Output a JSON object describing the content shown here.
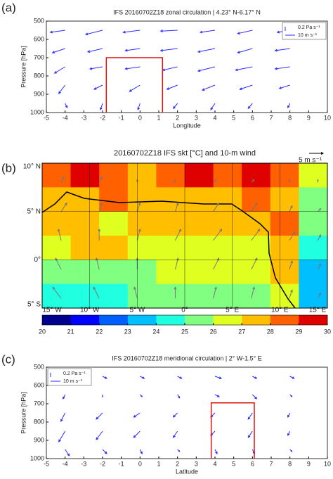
{
  "panels": [
    {
      "chart_data": {
        "type": "quiver",
        "panel_label": "(a)",
        "title": "IFS 20160702Z18 zonal circulation | 4.23° N-6.17° N",
        "xlabel": "Longitude",
        "ylabel": "Pressure [hPa]",
        "xlim": [
          -5,
          10
        ],
        "xticks": [
          -5,
          -4,
          -3,
          -2,
          -1,
          0,
          1,
          2,
          3,
          4,
          5,
          6,
          7,
          8,
          9,
          10
        ],
        "ylim": [
          1000,
          500
        ],
        "yticks": [
          500,
          600,
          700,
          800,
          900,
          1000
        ],
        "legend": [
          "0.2 Pa s⁻¹",
          "10 m s⁻¹"
        ],
        "legend_corner": "upper right",
        "color": "#2b2bff",
        "box": {
          "x": [
            -1.8,
            1.2
          ],
          "y": [
            1000,
            700
          ],
          "color": "#e01010"
        },
        "x": [
          -4,
          -2,
          0,
          2,
          4,
          6,
          8
        ],
        "levels": [
          550,
          650,
          750,
          850,
          950
        ],
        "u": [
          [
            -7,
            -8,
            -8,
            -8,
            -7,
            -7,
            -6
          ],
          [
            -6,
            -7,
            -7,
            -8,
            -8,
            -7,
            -7
          ],
          [
            -5,
            -6,
            -7,
            -7,
            -8,
            -8,
            -7
          ],
          [
            -3,
            -4,
            -5,
            -5,
            -6,
            -6,
            -5
          ],
          [
            1,
            -1,
            -1,
            -2,
            -2,
            -2,
            -1
          ]
        ],
        "w": [
          [
            0.05,
            0.1,
            0.05,
            0.02,
            0.05,
            0.08,
            0.05
          ],
          [
            0.1,
            0.08,
            0.05,
            0.05,
            0.08,
            0.1,
            0.05
          ],
          [
            0.15,
            0.05,
            0.05,
            0.08,
            0.1,
            0.08,
            0.05
          ],
          [
            0.2,
            0.1,
            0.15,
            0.1,
            0.12,
            0.1,
            0.08
          ],
          [
            0.1,
            0.15,
            0.15,
            0.12,
            0.15,
            0.12,
            0.1
          ]
        ]
      }
    },
    {
      "chart_data": {
        "type": "map",
        "panel_label": "(b)",
        "title": "20160702Z18 IFS skt [°C] and 10-m wind",
        "scale_label": "5 m s⁻¹",
        "xlim": [
          -15,
          15
        ],
        "xticks": [
          {
            "value": -15,
            "label": "15° W"
          },
          {
            "value": -10,
            "label": "10° W"
          },
          {
            "value": -5,
            "label": "5° W"
          },
          {
            "value": 0,
            "label": "0°"
          },
          {
            "value": 5,
            "label": "5° E"
          },
          {
            "value": 10,
            "label": "10° E"
          },
          {
            "value": 15,
            "label": "15° E"
          }
        ],
        "ylim": [
          -5,
          10
        ],
        "yticks": [
          {
            "value": 10,
            "label": "10° N"
          },
          {
            "value": 5,
            "label": "5° N"
          },
          {
            "value": 0,
            "label": "0°"
          },
          {
            "value": -5,
            "label": "5° S"
          }
        ],
        "colorbar": {
          "ticks": [
            20,
            21,
            22,
            23,
            24,
            25,
            26,
            27,
            28,
            29,
            30
          ],
          "colors": [
            "#00008f",
            "#0000ff",
            "#0060ff",
            "#00bfff",
            "#20ffdf",
            "#80ff80",
            "#dfff20",
            "#ffbf00",
            "#ff6000",
            "#df0000"
          ]
        },
        "lats": [
          8.75,
          6.25,
          3.75,
          1.25,
          -1.25,
          -3.75
        ],
        "lons": [
          -13.5,
          -10.5,
          -7.5,
          -4.5,
          -1.5,
          1.5,
          4.5,
          7.5,
          10.5,
          13.5
        ],
        "skt": [
          [
            28,
            29,
            28,
            27,
            28,
            29,
            28,
            29,
            28,
            26
          ],
          [
            27,
            27,
            28,
            27,
            27,
            27,
            27,
            28,
            27,
            25
          ],
          [
            27,
            27,
            26,
            27,
            27,
            27,
            27,
            27,
            28,
            25
          ],
          [
            26,
            27,
            27,
            26,
            26,
            26,
            26,
            26,
            27,
            24
          ],
          [
            25,
            25,
            25,
            25,
            26,
            26,
            26,
            26,
            27,
            23
          ],
          [
            24,
            24,
            24,
            25,
            25,
            25,
            25,
            25,
            26,
            23
          ]
        ],
        "wind_lats": [
          8,
          5,
          2,
          -1,
          -4
        ],
        "wind_lons": [
          -13,
          -9,
          -5,
          -1,
          3,
          7,
          11,
          14
        ],
        "wind_color": "#777777",
        "wind_u": [
          [
            1,
            1,
            0,
            0,
            1,
            1,
            0,
            0
          ],
          [
            2,
            1,
            1,
            1,
            2,
            2,
            1,
            1
          ],
          [
            -1,
            0,
            1,
            2,
            3,
            3,
            2,
            1
          ],
          [
            -2,
            -1,
            0,
            1,
            2,
            2,
            1,
            1
          ],
          [
            -3,
            -2,
            -1,
            0,
            1,
            1,
            1,
            1
          ]
        ],
        "wind_v": [
          [
            2,
            2,
            1,
            1,
            1,
            1,
            1,
            1
          ],
          [
            3,
            3,
            3,
            3,
            3,
            3,
            2,
            1
          ],
          [
            4,
            4,
            4,
            4,
            4,
            4,
            3,
            2
          ],
          [
            4,
            4,
            4,
            4,
            4,
            4,
            3,
            2
          ],
          [
            4,
            4,
            4,
            4,
            4,
            4,
            3,
            2
          ]
        ]
      }
    },
    {
      "chart_data": {
        "type": "quiver",
        "panel_label": "(c)",
        "title": "IFS 20160702Z18 meridional circulation | 2° W-1.5° E",
        "xlabel": "Latitude",
        "ylabel": "Pressure [hPa]",
        "xlim": [
          -5,
          10
        ],
        "xticks": [
          -5,
          -4,
          -3,
          -2,
          -1,
          0,
          1,
          2,
          3,
          4,
          5,
          6,
          7,
          8,
          9,
          10
        ],
        "ylim": [
          1000,
          500
        ],
        "yticks": [
          500,
          600,
          700,
          800,
          900,
          1000
        ],
        "legend": [
          "0.2 Pa s⁻¹",
          "10 m s⁻¹"
        ],
        "legend_corner": "upper left",
        "color": "#2b2bff",
        "box": {
          "x": [
            3.8,
            6.1
          ],
          "y": [
            1000,
            695
          ],
          "color": "#e01010"
        },
        "x": [
          -4,
          -2,
          0,
          2,
          4,
          6,
          8
        ],
        "levels": [
          550,
          650,
          750,
          850,
          950
        ],
        "u": [
          [
            1,
            2,
            2,
            2,
            3,
            2,
            2
          ],
          [
            -1,
            0,
            1,
            1,
            2,
            2,
            1
          ],
          [
            -2,
            -3,
            -3,
            -2,
            -2,
            -2,
            -1
          ],
          [
            -3,
            -3,
            -3,
            -2,
            -2,
            -2,
            -1
          ],
          [
            2,
            2,
            1,
            1,
            1,
            1,
            1
          ]
        ],
        "w": [
          [
            0.05,
            0.05,
            0.05,
            0.05,
            0.05,
            0.05,
            0.05
          ],
          [
            0.1,
            0.05,
            0.05,
            0.08,
            0.05,
            0.1,
            0.05
          ],
          [
            0.2,
            0.15,
            0.1,
            0.1,
            0.1,
            0.15,
            0.1
          ],
          [
            0.25,
            0.2,
            0.15,
            0.15,
            0.1,
            0.15,
            0.1
          ],
          [
            0.15,
            0.1,
            0.1,
            0.05,
            0.1,
            0.1,
            0.05
          ]
        ]
      }
    }
  ]
}
